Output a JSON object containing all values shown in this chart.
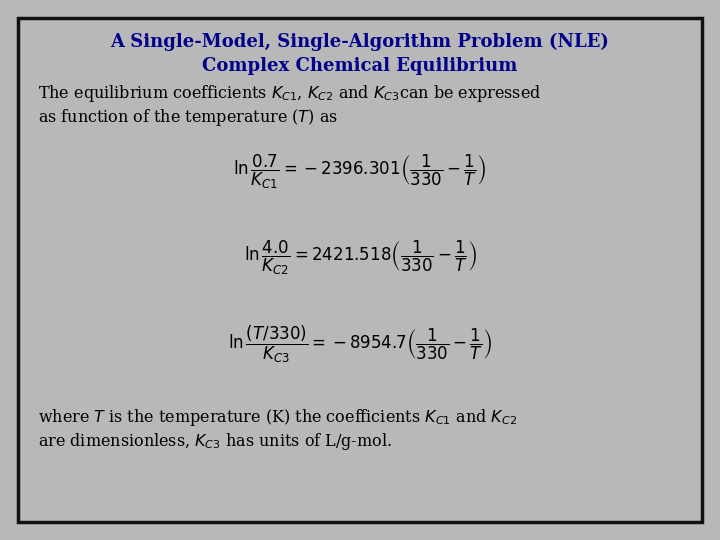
{
  "bg_color": "#b8b8b8",
  "box_color": "#b8b8b8",
  "border_color": "#111111",
  "title_color": "#00008B",
  "title_line1": "A Single-Model, Single-Algorithm Problem (NLE)",
  "title_line2": "Complex Chemical Equilibrium",
  "title_fontsize": 13,
  "body_fontsize": 11.5,
  "eq_fontsize": 12,
  "text_color": "#000000",
  "figsize": [
    7.2,
    5.4
  ],
  "dpi": 100
}
